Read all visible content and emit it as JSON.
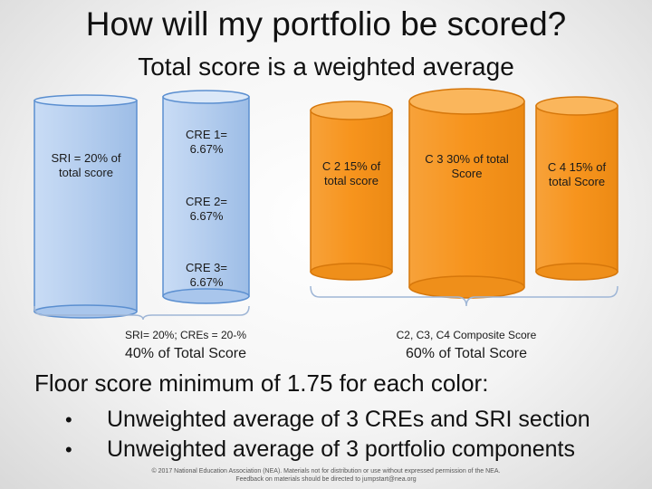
{
  "header": {
    "title": "How will my portfolio be scored?",
    "subtitle": "Total score is a weighted average"
  },
  "blue_group": {
    "sri_label": "SRI = 20% of total score",
    "cre1_label": "CRE 1= 6.67%",
    "cre2_label": "CRE 2= 6.67%",
    "cre3_label": "CRE 3= 6.67%",
    "caption": "SRI= 20%; CREs = 20-%",
    "total": "40% of Total Score",
    "color": "#b9d3f3"
  },
  "orange_group": {
    "c2_label": "C 2 15% of total score",
    "c3_label": "C 3 30% of total Score",
    "c4_label": "C 4 15% of total Score",
    "caption": "C2, C3, C4 Composite Score",
    "total": "60% of Total Score",
    "color": "#f7941d"
  },
  "floor": {
    "heading": "Floor score minimum of 1.75 for each color:",
    "bullets": [
      "Unweighted average of 3 CREs and SRI section",
      "Unweighted average of 3 portfolio components"
    ]
  },
  "footer": {
    "line1": "© 2017 National Education Association (NEA). Materials not for distribution or use without expressed permission of the NEA.",
    "line2": "Feedback on materials should be directed to jumpstart@nea.org"
  }
}
